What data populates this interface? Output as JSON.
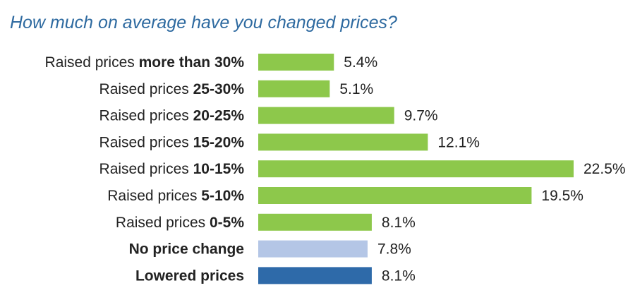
{
  "chart_data": {
    "type": "bar",
    "orientation": "horizontal",
    "title": "How much on average have you changed prices?",
    "categories": [
      {
        "prefix": "Raised prices ",
        "bold": "more than 30%"
      },
      {
        "prefix": "Raised prices ",
        "bold": "25-30%"
      },
      {
        "prefix": "Raised prices ",
        "bold": "20-25%"
      },
      {
        "prefix": "Raised prices ",
        "bold": "15-20%"
      },
      {
        "prefix": "Raised prices ",
        "bold": "10-15%"
      },
      {
        "prefix": "Raised prices ",
        "bold": "5-10%"
      },
      {
        "prefix": "Raised prices ",
        "bold": "0-5%"
      },
      {
        "prefix": "",
        "bold": "No price change"
      },
      {
        "prefix": "",
        "bold": "Lowered prices"
      }
    ],
    "values": [
      5.4,
      5.1,
      9.7,
      12.1,
      22.5,
      19.5,
      8.1,
      7.8,
      8.1
    ],
    "value_labels": [
      "5.4%",
      "5.1%",
      "9.7%",
      "12.1%",
      "22.5%",
      "19.5%",
      "8.1%",
      "7.8%",
      "8.1%"
    ],
    "colors": [
      "#8dc84b",
      "#8dc84b",
      "#8dc84b",
      "#8dc84b",
      "#8dc84b",
      "#8dc84b",
      "#8dc84b",
      "#b4c6e6",
      "#2e6aa9"
    ],
    "xlim": [
      0,
      22.5
    ],
    "grid": false,
    "legend": "none"
  }
}
